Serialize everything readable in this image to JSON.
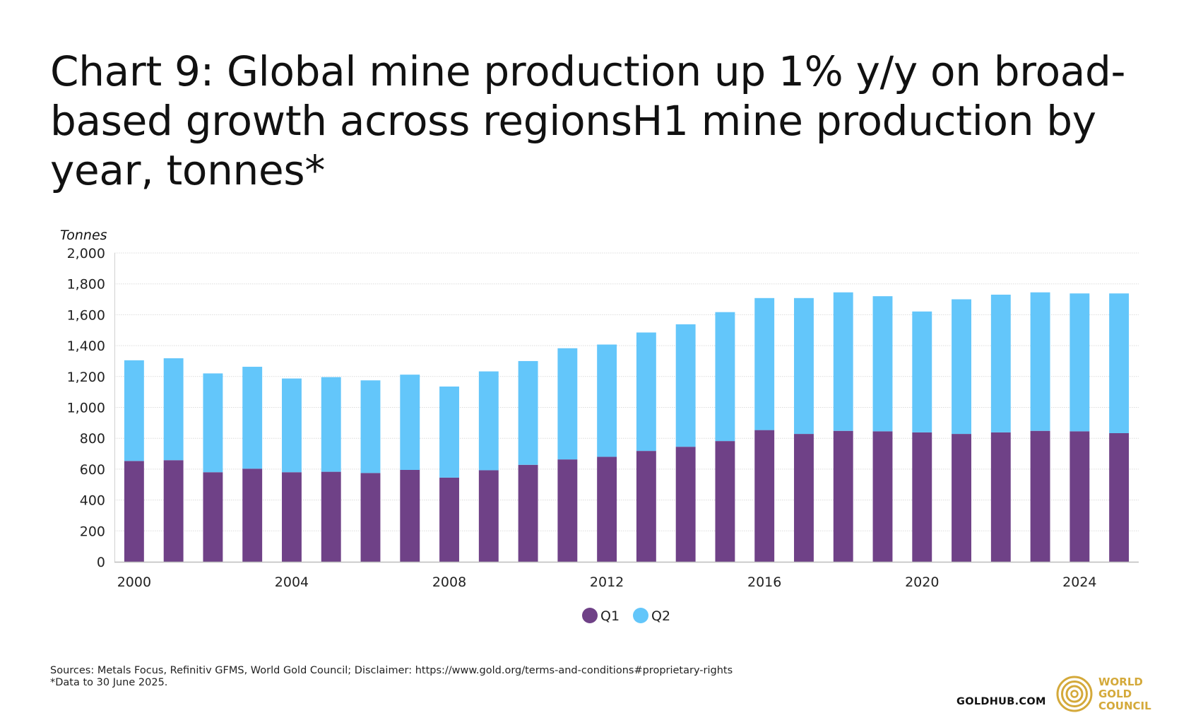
{
  "title": "Chart 9: Global mine production up 1% y/y on broad-based growth across regionsH1 mine production by year, tonnes*",
  "footer": {
    "sources": "Sources: Metals Focus, Refinitiv GFMS, World Gold Council; Disclaimer: https://www.gold.org/terms-and-conditions#proprietary-rights",
    "note": "*Data to 30 June 2025."
  },
  "branding": {
    "site": "GOLDHUB.COM",
    "logo_line1": "WORLD",
    "logo_line2": "GOLD",
    "logo_line3": "COUNCIL",
    "logo_icon": "gold-rings-icon",
    "logo_color": "#D4A93A"
  },
  "chart_data": {
    "type": "bar",
    "stacked": true,
    "ylabel": "Tonnes",
    "xlabel": "",
    "ylim": [
      0,
      2000
    ],
    "yticks": [
      0,
      200,
      400,
      600,
      800,
      1000,
      1200,
      1400,
      1600,
      1800,
      2000
    ],
    "x": [
      2000,
      2001,
      2002,
      2003,
      2004,
      2005,
      2006,
      2007,
      2008,
      2009,
      2010,
      2011,
      2012,
      2013,
      2014,
      2015,
      2016,
      2017,
      2018,
      2019,
      2020,
      2021,
      2022,
      2023,
      2024,
      2025
    ],
    "xtick_labels": [
      "2000",
      "2004",
      "2008",
      "2012",
      "2016",
      "2020",
      "2024"
    ],
    "grid": true,
    "legend_position": "bottom-center",
    "series": [
      {
        "name": "Q1",
        "color": "#6F4187",
        "values": [
          653,
          658,
          580,
          603,
          580,
          583,
          575,
          595,
          545,
          593,
          628,
          663,
          680,
          718,
          745,
          782,
          853,
          828,
          848,
          845,
          838,
          828,
          838,
          848,
          845,
          833
        ]
      },
      {
        "name": "Q2",
        "color": "#63C6FA",
        "values": [
          652,
          660,
          640,
          660,
          607,
          613,
          600,
          617,
          590,
          640,
          672,
          720,
          727,
          767,
          793,
          835,
          855,
          880,
          897,
          875,
          783,
          872,
          892,
          897,
          893,
          905
        ]
      }
    ]
  }
}
